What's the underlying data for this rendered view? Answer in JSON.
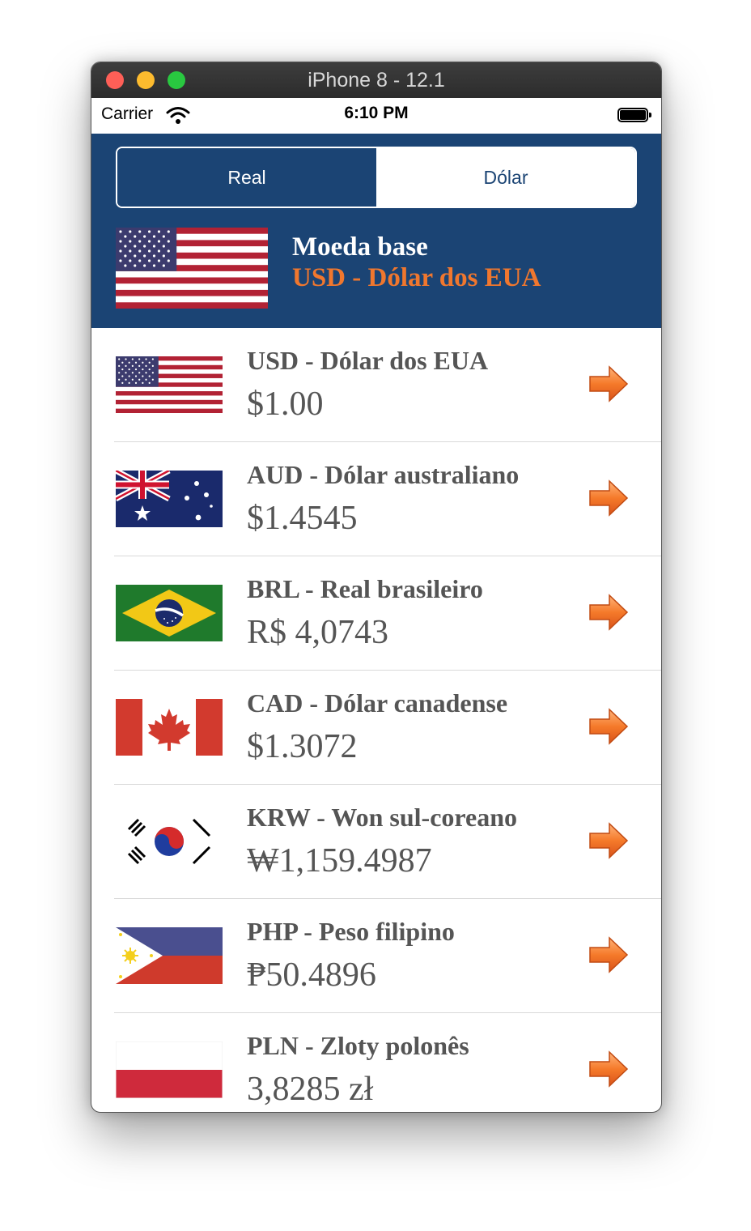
{
  "window": {
    "title": "iPhone 8 - 12.1"
  },
  "status_bar": {
    "carrier": "Carrier",
    "time": "6:10 PM"
  },
  "segmented_control": {
    "options": [
      "Real",
      "Dólar"
    ],
    "selected": "Dólar"
  },
  "base_currency": {
    "label": "Moeda base",
    "currency": "USD - Dólar dos EUA",
    "flag_icon": "us-flag-icon"
  },
  "colors": {
    "header_bg": "#1b4474",
    "accent_orange": "#f0772e",
    "text_gray": "#555555"
  },
  "currencies": [
    {
      "name": "USD - Dólar dos EUA",
      "value": "$1.00",
      "flag_icon": "us-flag-icon"
    },
    {
      "name": "AUD - Dólar australiano",
      "value": "$1.4545",
      "flag_icon": "australia-flag-icon"
    },
    {
      "name": "BRL - Real brasileiro",
      "value": "R$ 4,0743",
      "flag_icon": "brazil-flag-icon"
    },
    {
      "name": "CAD - Dólar canadense",
      "value": "$1.3072",
      "flag_icon": "canada-flag-icon"
    },
    {
      "name": "KRW - Won sul-coreano",
      "value": "₩1,159.4987",
      "flag_icon": "south-korea-flag-icon"
    },
    {
      "name": "PHP - Peso filipino",
      "value": "₱50.4896",
      "flag_icon": "philippines-flag-icon"
    },
    {
      "name": "PLN - Zloty polonês",
      "value": "3,8285 zł",
      "flag_icon": "poland-flag-icon"
    }
  ]
}
